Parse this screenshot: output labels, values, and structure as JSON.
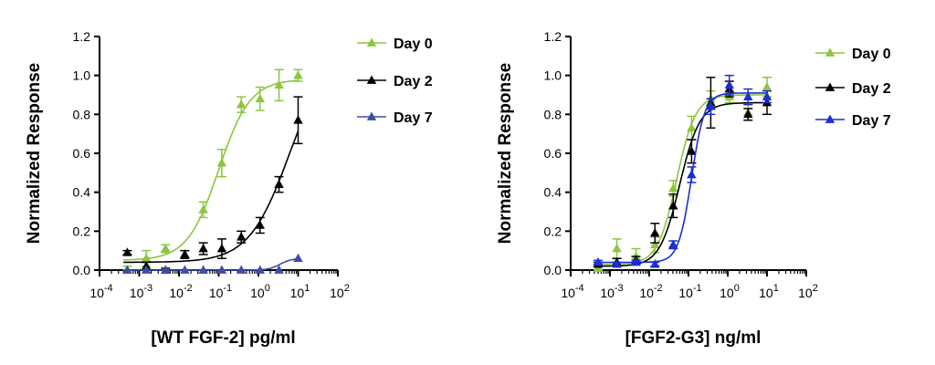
{
  "chart_data": [
    {
      "type": "scatter",
      "xscale": "log",
      "xlim": [
        0.0001,
        100
      ],
      "ylim": [
        0,
        1.2
      ],
      "xlabel": "[WT FGF-2] pg/ml",
      "ylabel": "Normalized Response",
      "x_ticks": [
        {
          "value": 0.0001,
          "base": "10",
          "exp": "-4"
        },
        {
          "value": 0.001,
          "base": "10",
          "exp": "-3"
        },
        {
          "value": 0.01,
          "base": "10",
          "exp": "-2"
        },
        {
          "value": 0.1,
          "base": "10",
          "exp": "-1"
        },
        {
          "value": 1,
          "base": "10",
          "exp": "0"
        },
        {
          "value": 10,
          "base": "10",
          "exp": "1"
        },
        {
          "value": 100,
          "base": "10",
          "exp": "2"
        }
      ],
      "y_ticks": [
        "0.0",
        "0.2",
        "0.4",
        "0.6",
        "0.8",
        "1.0",
        "1.2"
      ],
      "legend_position": "right",
      "series": [
        {
          "name": "Day 0",
          "color": "#8cc63f",
          "marker": "triangle",
          "x": [
            0.0005,
            0.0015,
            0.0046,
            0.014,
            0.041,
            0.12,
            0.37,
            1.1,
            3.3,
            10
          ],
          "y": [
            0.0,
            0.06,
            0.11,
            0.08,
            0.31,
            0.55,
            0.85,
            0.88,
            0.95,
            1.0
          ],
          "err": [
            0.02,
            0.04,
            0.02,
            0.02,
            0.04,
            0.07,
            0.04,
            0.06,
            0.08,
            0.03
          ],
          "fit": {
            "bottom": 0.05,
            "top": 0.98,
            "ec50": 0.1,
            "hill": 1.1
          }
        },
        {
          "name": "Day 2",
          "color": "#000000",
          "marker": "triangle",
          "x": [
            0.0005,
            0.0015,
            0.0046,
            0.014,
            0.041,
            0.12,
            0.37,
            1.1,
            3.3,
            10
          ],
          "y": [
            0.09,
            0.02,
            0.0,
            0.08,
            0.11,
            0.11,
            0.17,
            0.23,
            0.44,
            0.77
          ],
          "err": [
            0.01,
            0.02,
            0.01,
            0.02,
            0.03,
            0.05,
            0.03,
            0.04,
            0.04,
            0.12
          ],
          "fit": {
            "bottom": 0.04,
            "top": 1.15,
            "ec50": 6,
            "hill": 0.85
          }
        },
        {
          "name": "Day 7",
          "color": "#3b4fa8",
          "marker": "triangle",
          "x": [
            0.0005,
            0.0015,
            0.0046,
            0.014,
            0.041,
            0.12,
            0.37,
            1.1,
            3.3,
            10
          ],
          "y": [
            0.0,
            0.0,
            0.0,
            0.0,
            0.0,
            0.0,
            0.0,
            0.0,
            0.0,
            0.06
          ],
          "err": [
            0,
            0,
            0,
            0,
            0,
            0,
            0,
            0,
            0,
            0
          ],
          "fit": {
            "bottom": 0.0,
            "top": 0.06,
            "ec50": 3.5,
            "hill": 3
          }
        }
      ]
    },
    {
      "type": "scatter",
      "xscale": "log",
      "xlim": [
        0.0001,
        100
      ],
      "ylim": [
        0,
        1.2
      ],
      "xlabel": "[FGF2-G3] ng/ml",
      "ylabel": "Normalized Response",
      "x_ticks": [
        {
          "value": 0.0001,
          "base": "10",
          "exp": "-4"
        },
        {
          "value": 0.001,
          "base": "10",
          "exp": "-3"
        },
        {
          "value": 0.01,
          "base": "10",
          "exp": "-2"
        },
        {
          "value": 0.1,
          "base": "10",
          "exp": "-1"
        },
        {
          "value": 1,
          "base": "10",
          "exp": "0"
        },
        {
          "value": 10,
          "base": "10",
          "exp": "1"
        },
        {
          "value": 100,
          "base": "10",
          "exp": "2"
        }
      ],
      "y_ticks": [
        "0.0",
        "0.2",
        "0.4",
        "0.6",
        "0.8",
        "1.0",
        "1.2"
      ],
      "legend_position": "right",
      "series": [
        {
          "name": "Day 0",
          "color": "#8cc63f",
          "marker": "triangle",
          "x": [
            0.0005,
            0.0015,
            0.0046,
            0.014,
            0.041,
            0.12,
            0.37,
            1.1,
            3.3,
            10
          ],
          "y": [
            0.01,
            0.11,
            0.07,
            0.13,
            0.42,
            0.73,
            0.88,
            0.89,
            0.81,
            0.94
          ],
          "err": [
            0.02,
            0.05,
            0.04,
            0.04,
            0.04,
            0.06,
            0.04,
            0.03,
            0.04,
            0.05
          ],
          "fit": {
            "bottom": 0.03,
            "top": 0.9,
            "ec50": 0.05,
            "hill": 1.8
          }
        },
        {
          "name": "Day 2",
          "color": "#000000",
          "marker": "triangle",
          "x": [
            0.0005,
            0.0015,
            0.0046,
            0.014,
            0.041,
            0.12,
            0.37,
            1.1,
            3.3,
            10
          ],
          "y": [
            0.03,
            0.04,
            0.05,
            0.19,
            0.33,
            0.61,
            0.86,
            0.93,
            0.8,
            0.86
          ],
          "err": [
            0.01,
            0.02,
            0.02,
            0.05,
            0.06,
            0.06,
            0.13,
            0.04,
            0.03,
            0.06
          ],
          "fit": {
            "bottom": 0.02,
            "top": 0.86,
            "ec50": 0.06,
            "hill": 1.7
          }
        },
        {
          "name": "Day 7",
          "color": "#1c2fd0",
          "marker": "triangle",
          "x": [
            0.0005,
            0.0015,
            0.0046,
            0.014,
            0.041,
            0.12,
            0.37,
            1.1,
            3.3,
            10
          ],
          "y": [
            0.04,
            0.03,
            0.04,
            0.03,
            0.13,
            0.49,
            0.84,
            0.95,
            0.89,
            0.89
          ],
          "err": [
            0.01,
            0.01,
            0.01,
            0.01,
            0.02,
            0.04,
            0.04,
            0.05,
            0.04,
            0.03
          ],
          "fit": {
            "bottom": 0.04,
            "top": 0.91,
            "ec50": 0.12,
            "hill": 2.6
          }
        }
      ]
    }
  ]
}
